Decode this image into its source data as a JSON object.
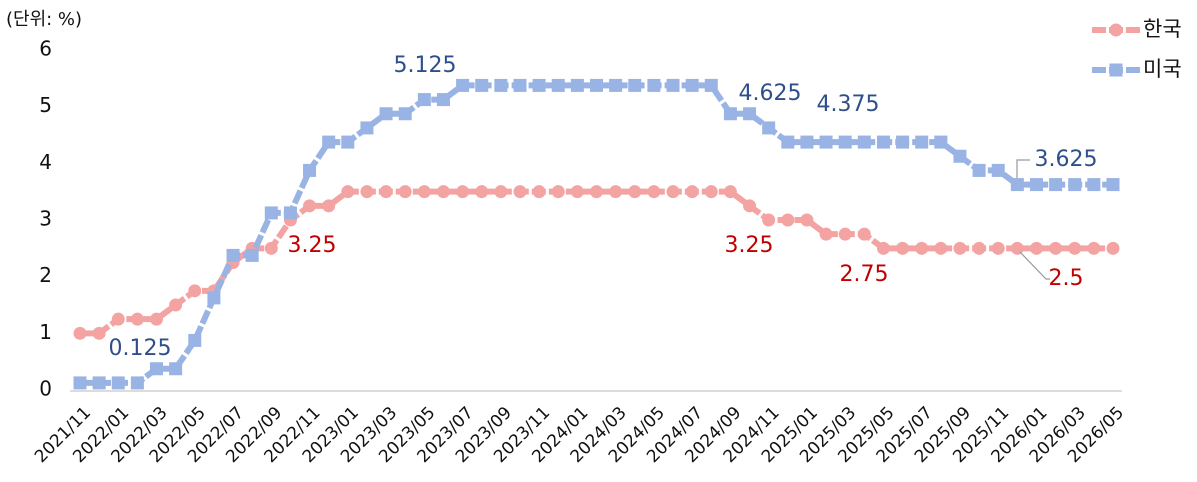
{
  "chart_data": {
    "type": "line",
    "title": "(단위: %)",
    "categories": [
      "2021/11",
      null,
      "2022/01",
      null,
      "2022/03",
      null,
      "2022/05",
      null,
      "2022/07",
      null,
      "2022/09",
      null,
      "2022/11",
      null,
      "2023/01",
      null,
      "2023/03",
      null,
      "2023/05",
      null,
      "2023/07",
      null,
      "2023/09",
      null,
      "2023/11",
      null,
      "2024/01",
      null,
      "2024/03",
      null,
      "2024/05",
      null,
      "2024/07",
      null,
      "2024/09",
      null,
      "2024/11",
      null,
      "2025/01",
      null,
      "2025/03",
      null,
      "2025/05",
      null,
      "2025/07",
      null,
      "2025/09",
      null,
      "2025/11",
      null,
      "2026/01",
      null,
      "2026/03",
      null,
      "2026/05"
    ],
    "series": [
      {
        "name": "한국",
        "color": "#f4a3a3",
        "marker": "circle",
        "values": [
          1.0,
          1.0,
          1.25,
          1.25,
          1.25,
          1.5,
          1.75,
          1.75,
          2.25,
          2.5,
          2.5,
          3.0,
          3.25,
          3.25,
          3.5,
          3.5,
          3.5,
          3.5,
          3.5,
          3.5,
          3.5,
          3.5,
          3.5,
          3.5,
          3.5,
          3.5,
          3.5,
          3.5,
          3.5,
          3.5,
          3.5,
          3.5,
          3.5,
          3.5,
          3.5,
          3.25,
          3.0,
          3.0,
          3.0,
          2.75,
          2.75,
          2.75,
          2.5,
          2.5,
          2.5,
          2.5,
          2.5,
          2.5,
          2.5,
          2.5,
          2.5,
          2.5,
          2.5,
          2.5,
          2.5
        ]
      },
      {
        "name": "미국",
        "color": "#98b3e4",
        "marker": "square",
        "values": [
          0.125,
          0.125,
          0.125,
          0.125,
          0.375,
          0.375,
          0.875,
          1.625,
          2.375,
          2.375,
          3.125,
          3.125,
          3.875,
          4.375,
          4.375,
          4.625,
          4.875,
          4.875,
          5.125,
          5.125,
          5.375,
          5.375,
          5.375,
          5.375,
          5.375,
          5.375,
          5.375,
          5.375,
          5.375,
          5.375,
          5.375,
          5.375,
          5.375,
          5.375,
          4.875,
          4.875,
          4.625,
          4.375,
          4.375,
          4.375,
          4.375,
          4.375,
          4.375,
          4.375,
          4.375,
          4.375,
          4.125,
          3.875,
          3.875,
          3.625,
          3.625,
          3.625,
          3.625,
          3.625,
          3.625
        ]
      }
    ],
    "annotations": [
      "0.125",
      "5.125",
      "4.625",
      "4.375",
      "3.625",
      "3.25",
      "3.25",
      "2.75",
      "2.5"
    ],
    "ylim": [
      0,
      6
    ],
    "yticks": [
      0,
      1,
      2,
      3,
      4,
      5,
      6
    ],
    "legend": "top-right",
    "grid": false
  }
}
